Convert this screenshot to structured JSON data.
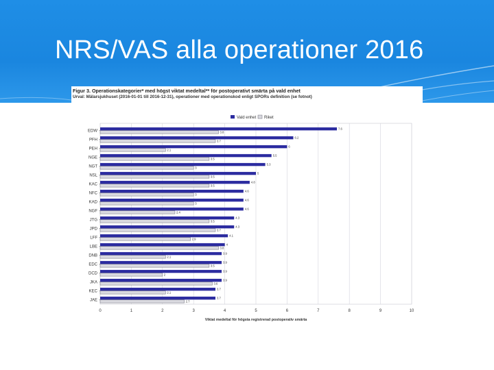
{
  "slide": {
    "title": "NRS/VAS alla operationer 2016"
  },
  "colors": {
    "header_bg": "#1f8ee6",
    "unit_bar": "#2c2ca0",
    "national_bar": "#d9d9df",
    "national_border": "#6a6a78"
  },
  "chart_data": {
    "type": "bar",
    "orientation": "horizontal",
    "title": "Figur 3. Operationskategorier* med högst viktat medeltal** för postoperativt smärta på vald enhet",
    "subtitle": "Urval: Mälarsjukhuset (2016-01-01 till 2016-12-31), operationer med operationskod enligt SPORs definition (se fotnot)",
    "xlabel": "Viktat medeltal för högsta registrerad postoperativ smärta",
    "ylabel": "",
    "xlim": [
      0,
      10
    ],
    "xticks": [
      "0",
      "1",
      "2",
      "3",
      "4",
      "5",
      "6",
      "7",
      "8",
      "9",
      "10"
    ],
    "grid": true,
    "legend_position": "top",
    "categories": [
      "EDW",
      "PFH",
      "PEH",
      "NGE",
      "NGT",
      "NSL",
      "KAC",
      "NFC",
      "KAD",
      "NGF",
      "JTG",
      "JPD",
      "LFF",
      "LBE",
      "DNB",
      "EDC",
      "DCD",
      "JKA",
      "KEC",
      "JAE"
    ],
    "series": [
      {
        "name": "Vald enhet",
        "values": [
          7.6,
          6.2,
          6.0,
          5.5,
          5.3,
          5.0,
          4.8,
          4.6,
          4.6,
          4.6,
          4.3,
          4.3,
          4.1,
          4.0,
          3.9,
          3.9,
          3.9,
          3.9,
          3.7,
          3.7
        ],
        "labels": [
          "7.6",
          "6.2",
          "6",
          "5.5",
          "5.3",
          "5",
          "4.8",
          "4.6",
          "4.6",
          "4.6",
          "4.3",
          "4.3",
          "4.1",
          "4",
          "3.9",
          "3.9",
          "3.9",
          "3.9",
          "3.7",
          "3.7"
        ]
      },
      {
        "name": "Riket",
        "values": [
          3.8,
          3.7,
          2.1,
          3.5,
          3.0,
          3.5,
          3.5,
          3.0,
          3.0,
          2.4,
          3.5,
          3.7,
          2.9,
          3.8,
          2.1,
          3.5,
          2.0,
          3.6,
          2.1,
          2.7
        ],
        "labels": [
          "3.8",
          "3.7",
          "2.1",
          "3.5",
          "3",
          "3.5",
          "3.5",
          "3",
          "3",
          "2.4",
          "3.5",
          "3.7",
          "2.9",
          "3.8",
          "2.1",
          "3.5",
          "2",
          "3.6",
          "2.1",
          "2.7"
        ]
      }
    ]
  }
}
